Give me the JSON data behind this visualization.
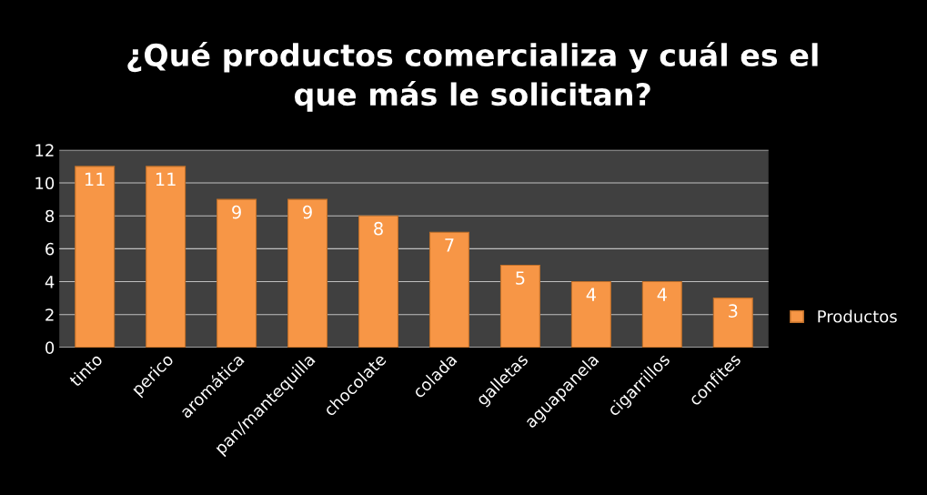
{
  "chart_data": {
    "type": "bar",
    "title": "¿Qué productos comercializa y cuál es el\nque más le solicitan?",
    "categories": [
      "tinto",
      "perico",
      "aromática",
      "pan/mantequilla",
      "chocolate",
      "colada",
      "galletas",
      "aguapanela",
      "cigarrillos",
      "confites"
    ],
    "series": [
      {
        "name": "Productos",
        "color": "#f79646",
        "values": [
          11,
          11,
          9,
          9,
          8,
          7,
          5,
          4,
          4,
          3
        ]
      }
    ],
    "ylim": [
      0,
      12
    ],
    "yticks": [
      0,
      2,
      4,
      6,
      8,
      10,
      12
    ],
    "grid": "y",
    "legend": "right",
    "data_labels": true
  }
}
